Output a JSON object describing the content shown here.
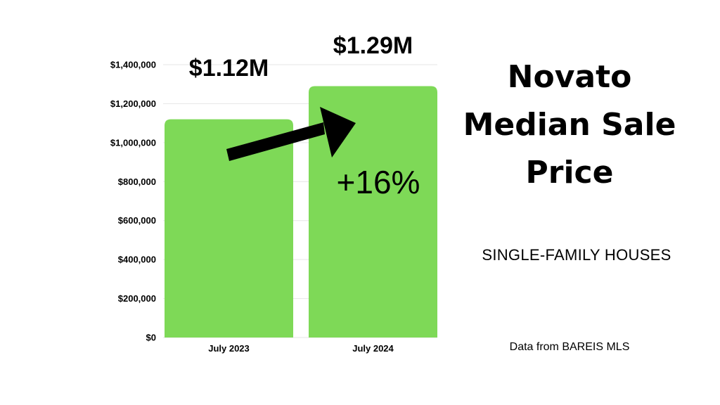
{
  "title_lines": [
    "Novato",
    "Median Sale",
    "Price"
  ],
  "subtitle": "SINGLE-FAMILY HOUSES",
  "source": "Data from BAREIS MLS",
  "chart_data": {
    "type": "bar",
    "categories": [
      "July 2023",
      "July 2024"
    ],
    "values": [
      1120000,
      1290000
    ],
    "value_labels": [
      "$1.12M",
      "$1.29M"
    ],
    "annotation": "+16%",
    "ylim": [
      0,
      1400000
    ],
    "yticks": [
      0,
      200000,
      400000,
      600000,
      800000,
      1000000,
      1200000,
      1400000
    ],
    "ytick_labels": [
      "$0",
      "$200,000",
      "$400,000",
      "$600,000",
      "$800,000",
      "$1,000,000",
      "$1,200,000",
      "$1,400,000"
    ],
    "grid": true,
    "xlabel": "",
    "ylabel": "",
    "bar_color": "#7ED957",
    "grid_color": "#e6e6e6",
    "arrow_color": "#000000"
  }
}
